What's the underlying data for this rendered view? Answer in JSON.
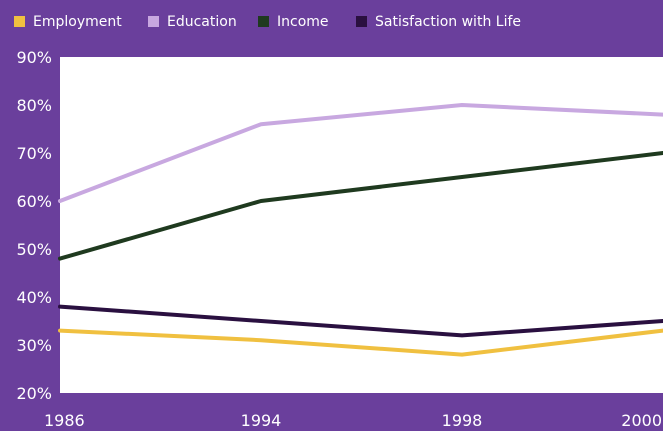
{
  "chart_data": {
    "type": "line",
    "x": [
      "1986",
      "1994",
      "1998",
      "2000"
    ],
    "yticks": [
      "90%",
      "80%",
      "70%",
      "60%",
      "50%",
      "40%",
      "30%",
      "20%"
    ],
    "ylim": [
      20,
      90
    ],
    "grid": false,
    "legend_position": "top",
    "series": [
      {
        "name": "Employment",
        "color": "#f0c040",
        "values": [
          33,
          31,
          28,
          33
        ]
      },
      {
        "name": "Education",
        "color": "#c8a8e0",
        "values": [
          60,
          76,
          80,
          78
        ]
      },
      {
        "name": "Income",
        "color": "#1f3a1f",
        "values": [
          48,
          60,
          65,
          70
        ]
      },
      {
        "name": "Satisfaction with Life",
        "color": "#2a1040",
        "values": [
          38,
          35,
          32,
          35
        ]
      }
    ]
  }
}
